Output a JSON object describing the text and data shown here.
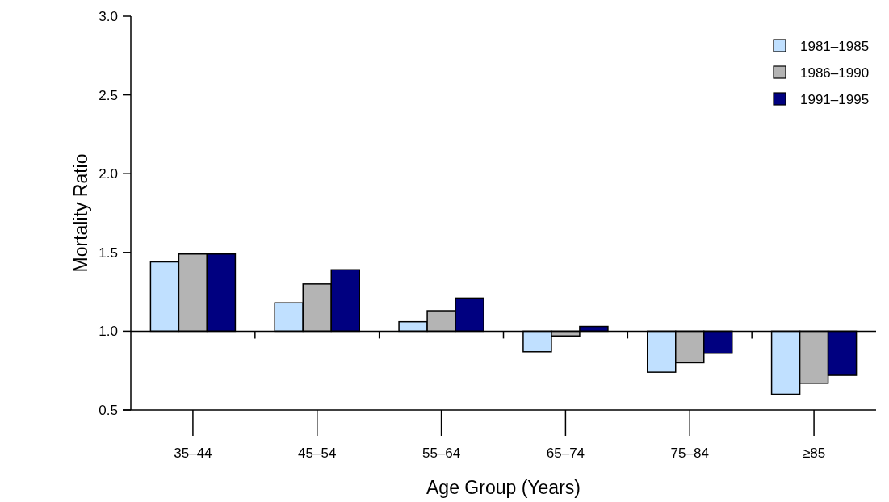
{
  "chart_data": {
    "type": "bar",
    "xlabel": "Age Group (Years)",
    "ylabel": "Mortality Ratio",
    "categories": [
      "35–44",
      "45–54",
      "55–64",
      "65–74",
      "75–84",
      "≥85"
    ],
    "series": [
      {
        "name": "1981–1985",
        "color": "#c0e0ff",
        "base": [
          1,
          1,
          1,
          1,
          1,
          1
        ],
        "values": [
          0.44,
          0.18,
          0.06,
          -0.13,
          -0.26,
          -0.4
        ]
      },
      {
        "name": "1986–1990",
        "color": "#b4b4b4",
        "base": [
          1,
          1,
          1,
          1,
          1,
          1
        ],
        "values": [
          0.49,
          0.3,
          0.13,
          -0.03,
          -0.2,
          -0.33
        ]
      },
      {
        "name": "1991–1995",
        "color": "#000080",
        "base": [
          1,
          1,
          1,
          1,
          1,
          1
        ],
        "values": [
          0.49,
          0.39,
          0.21,
          0.03,
          -0.14,
          -0.28
        ]
      }
    ],
    "ylim": [
      0.5,
      3.0
    ],
    "yticks": [
      {
        "value": 0.5,
        "label": "0.5"
      },
      {
        "value": 1,
        "label": "1.0"
      },
      {
        "value": 1.5,
        "label": "1.5"
      },
      {
        "value": 2,
        "label": "2.0"
      },
      {
        "value": 2.5,
        "label": "2.5"
      },
      {
        "value": 3,
        "label": "3.0"
      }
    ],
    "ref_lines": [
      {
        "axis": "y",
        "value": 1
      }
    ],
    "legend": "top right",
    "grid": false
  }
}
